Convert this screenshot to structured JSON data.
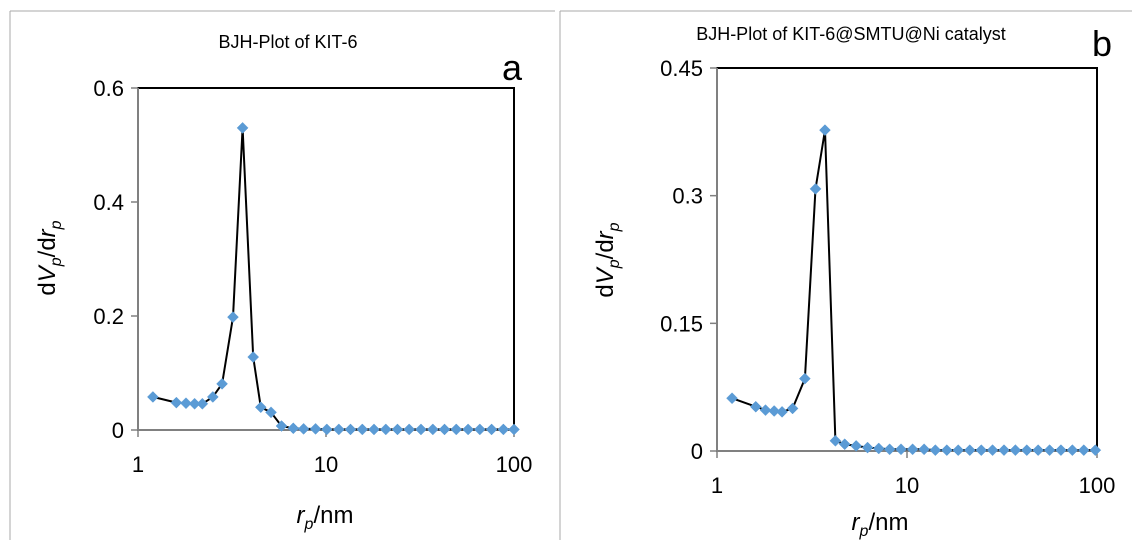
{
  "chart_data": [
    {
      "type": "scatter",
      "panel_letter": "a",
      "title": "BJH-Plot of KIT-6",
      "xlabel": {
        "base": "r",
        "sub": "p",
        "suffix": "/nm"
      },
      "ylabel": {
        "pre": "d",
        "v": "V",
        "vsub": "p",
        "mid": "/d",
        "r": "r",
        "rsub": "p"
      },
      "xscale": "log",
      "xlim": [
        1,
        100
      ],
      "ylim": [
        0,
        0.6
      ],
      "xticks": [
        1,
        10,
        100
      ],
      "xtick_labels": [
        "1",
        "10",
        "100"
      ],
      "yticks": [
        0,
        0.2,
        0.4,
        0.6
      ],
      "ytick_labels": [
        "0",
        "0.2",
        "0.4",
        "0.6"
      ],
      "grid": false,
      "legend": "none",
      "marker_color": "#5b9bd5",
      "line_color": "#000000",
      "series": [
        {
          "x": [
            1.2,
            1.6,
            1.8,
            2.0,
            2.2,
            2.5,
            2.8,
            3.2,
            3.6,
            4.1,
            4.5,
            5.1,
            5.8,
            6.7,
            7.6,
            8.8,
            10.1,
            11.7,
            13.5,
            15.6,
            18.0,
            20.8,
            24.0,
            27.7,
            32.0,
            37.0,
            42.7,
            49.3,
            57.0,
            65.8,
            76.0,
            87.8,
            100
          ],
          "y": [
            0.058,
            0.048,
            0.047,
            0.046,
            0.046,
            0.058,
            0.081,
            0.198,
            0.53,
            0.128,
            0.04,
            0.031,
            0.007,
            0.003,
            0.002,
            0.002,
            0.001,
            0.001,
            0.001,
            0.001,
            0.001,
            0.001,
            0.001,
            0.001,
            0.001,
            0.001,
            0.001,
            0.001,
            0.001,
            0.001,
            0.001,
            0.001,
            0.001
          ]
        }
      ]
    },
    {
      "type": "scatter",
      "panel_letter": "b",
      "title": "BJH-Plot of KIT-6@SMTU@Ni catalyst",
      "xlabel": {
        "base": "r",
        "sub": "p",
        "suffix": "/nm"
      },
      "ylabel": {
        "pre": "d",
        "v": "V",
        "vsub": "p",
        "mid": "/d",
        "r": "r",
        "rsub": "p"
      },
      "xscale": "log",
      "xlim": [
        1,
        100
      ],
      "ylim": [
        0,
        0.45
      ],
      "xticks": [
        1,
        10,
        100
      ],
      "xtick_labels": [
        "1",
        "10",
        "100"
      ],
      "yticks": [
        0,
        0.15,
        0.3,
        0.45
      ],
      "ytick_labels": [
        "0",
        "0.15",
        "0.3",
        "0.45"
      ],
      "grid": false,
      "legend": "none",
      "marker_color": "#5b9bd5",
      "line_color": "#000000",
      "series": [
        {
          "x": [
            1.2,
            1.6,
            1.8,
            2.0,
            2.2,
            2.5,
            2.9,
            3.3,
            3.7,
            4.2,
            4.7,
            5.4,
            6.2,
            7.1,
            8.1,
            9.3,
            10.7,
            12.3,
            14.1,
            16.2,
            18.6,
            21.4,
            24.6,
            28.2,
            32.4,
            37.2,
            42.7,
            49.0,
            56.3,
            64.6,
            74.2,
            85.2,
            98.0
          ],
          "y": [
            0.062,
            0.052,
            0.048,
            0.047,
            0.046,
            0.05,
            0.085,
            0.308,
            0.377,
            0.012,
            0.008,
            0.006,
            0.004,
            0.003,
            0.002,
            0.002,
            0.002,
            0.002,
            0.001,
            0.001,
            0.001,
            0.001,
            0.001,
            0.001,
            0.001,
            0.001,
            0.001,
            0.001,
            0.001,
            0.001,
            0.001,
            0.001,
            0.001
          ]
        }
      ]
    }
  ]
}
